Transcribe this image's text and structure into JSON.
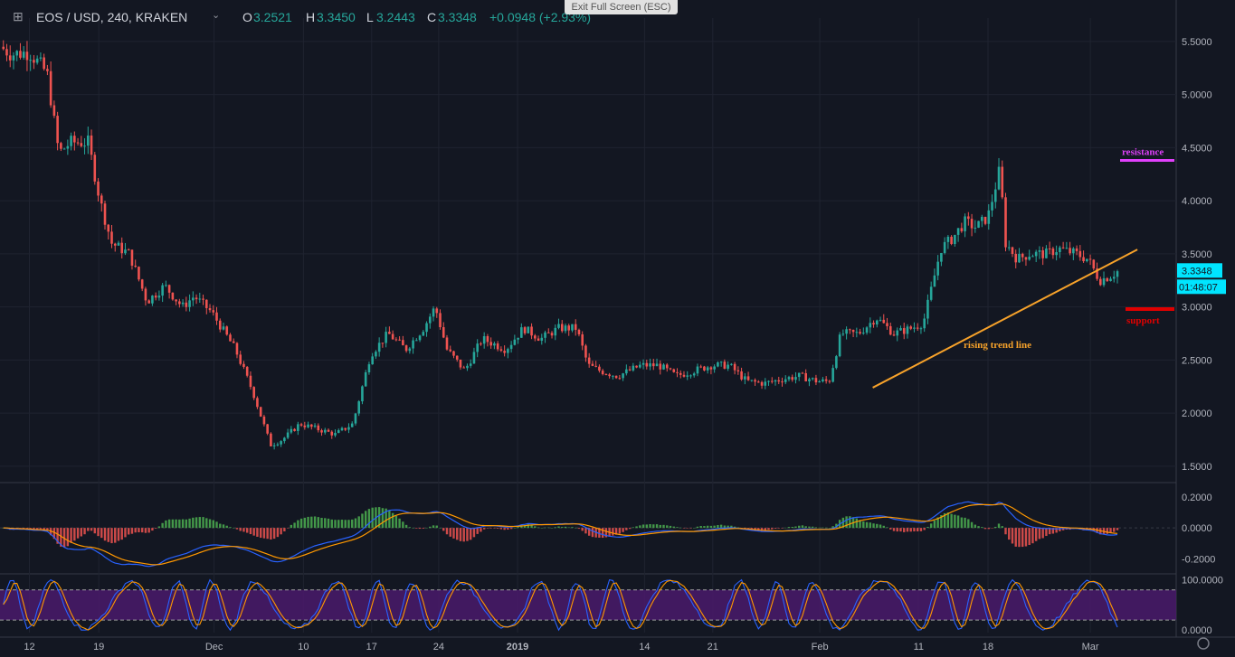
{
  "header": {
    "symbol": "EOS / USD, 240, KRAKEN",
    "o_label": "O",
    "o_value": "3.2521",
    "h_label": "H",
    "h_value": "3.3450",
    "l_label": "L",
    "l_value": "3.2443",
    "c_label": "C",
    "c_value": "3.3348",
    "change": "+0.0948 (+2.93%)",
    "exit_fullscreen": "Exit Full Screen (ESC)",
    "dropdown_icon": "chevron-down-icon",
    "crosshair_icon": "crosshair-icon"
  },
  "colors": {
    "background": "#131722",
    "up": "#26a69a",
    "down": "#ef5350",
    "trend": "#f7a22a",
    "resistance": "#e040fb",
    "support": "#e00000",
    "price_tag": "#00e5ff",
    "macd_line": "#2962ff",
    "signal_line": "#ff9800",
    "rsi_band": "#4a1a6b"
  },
  "chart_data": {
    "type": "candlestick",
    "price_axis": {
      "ticks": [
        "5.5000",
        "5.0000",
        "4.5000",
        "4.0000",
        "3.5000",
        "3.0000",
        "2.5000",
        "2.0000",
        "1.5000"
      ],
      "range": [
        1.38,
        5.72
      ]
    },
    "time_axis": {
      "ticks": [
        "12",
        "19",
        "Dec",
        "10",
        "17",
        "24",
        "2019",
        "14",
        "21",
        "Feb",
        "11",
        "18",
        "Mar"
      ]
    },
    "price_path": [
      [
        0,
        5.45
      ],
      [
        0.01,
        5.38
      ],
      [
        0.025,
        5.4
      ],
      [
        0.04,
        5.2
      ],
      [
        0.05,
        4.45
      ],
      [
        0.06,
        4.55
      ],
      [
        0.075,
        4.55
      ],
      [
        0.085,
        4.0
      ],
      [
        0.095,
        3.6
      ],
      [
        0.11,
        3.5
      ],
      [
        0.125,
        3.05
      ],
      [
        0.14,
        3.2
      ],
      [
        0.155,
        3.0
      ],
      [
        0.165,
        3.1
      ],
      [
        0.18,
        2.95
      ],
      [
        0.2,
        2.6
      ],
      [
        0.215,
        2.2
      ],
      [
        0.23,
        1.7
      ],
      [
        0.24,
        1.75
      ],
      [
        0.255,
        1.9
      ],
      [
        0.27,
        1.85
      ],
      [
        0.285,
        1.8
      ],
      [
        0.3,
        1.9
      ],
      [
        0.315,
        2.55
      ],
      [
        0.33,
        2.75
      ],
      [
        0.345,
        2.6
      ],
      [
        0.36,
        2.8
      ],
      [
        0.37,
        3.0
      ],
      [
        0.38,
        2.6
      ],
      [
        0.395,
        2.4
      ],
      [
        0.41,
        2.7
      ],
      [
        0.43,
        2.6
      ],
      [
        0.445,
        2.8
      ],
      [
        0.46,
        2.7
      ],
      [
        0.475,
        2.8
      ],
      [
        0.49,
        2.8
      ],
      [
        0.5,
        2.45
      ],
      [
        0.51,
        2.4
      ],
      [
        0.525,
        2.35
      ],
      [
        0.545,
        2.45
      ],
      [
        0.56,
        2.45
      ],
      [
        0.575,
        2.35
      ],
      [
        0.59,
        2.4
      ],
      [
        0.605,
        2.45
      ],
      [
        0.62,
        2.45
      ],
      [
        0.635,
        2.3
      ],
      [
        0.65,
        2.28
      ],
      [
        0.665,
        2.32
      ],
      [
        0.68,
        2.35
      ],
      [
        0.695,
        2.3
      ],
      [
        0.705,
        2.3
      ],
      [
        0.715,
        2.75
      ],
      [
        0.73,
        2.75
      ],
      [
        0.745,
        2.9
      ],
      [
        0.76,
        2.75
      ],
      [
        0.775,
        2.8
      ],
      [
        0.785,
        2.85
      ],
      [
        0.8,
        3.55
      ],
      [
        0.81,
        3.65
      ],
      [
        0.82,
        3.8
      ],
      [
        0.83,
        3.75
      ],
      [
        0.84,
        3.85
      ],
      [
        0.85,
        4.3
      ],
      [
        0.855,
        3.6
      ],
      [
        0.865,
        3.45
      ],
      [
        0.875,
        3.5
      ],
      [
        0.89,
        3.5
      ],
      [
        0.9,
        3.55
      ],
      [
        0.915,
        3.5
      ],
      [
        0.925,
        3.45
      ],
      [
        0.935,
        3.25
      ],
      [
        0.945,
        3.3
      ],
      [
        0.95,
        3.3348
      ]
    ],
    "annotations": [
      {
        "text": "rising trend line",
        "from": [
          0.695,
          2.24
        ],
        "to": [
          0.955,
          3.54
        ]
      },
      {
        "text": "resistance",
        "price": 4.38
      },
      {
        "text": "support",
        "price": 2.98
      }
    ],
    "last_price": "3.3348",
    "countdown": "01:48:07",
    "macd": {
      "ticks": [
        "0.2000",
        "0.0000",
        "-0.2000"
      ],
      "range": [
        -0.28,
        0.27
      ]
    },
    "rsi": {
      "ticks": [
        "100.0000",
        "0.0000"
      ],
      "range": [
        -5,
        110
      ],
      "bands": [
        20,
        80
      ]
    }
  }
}
